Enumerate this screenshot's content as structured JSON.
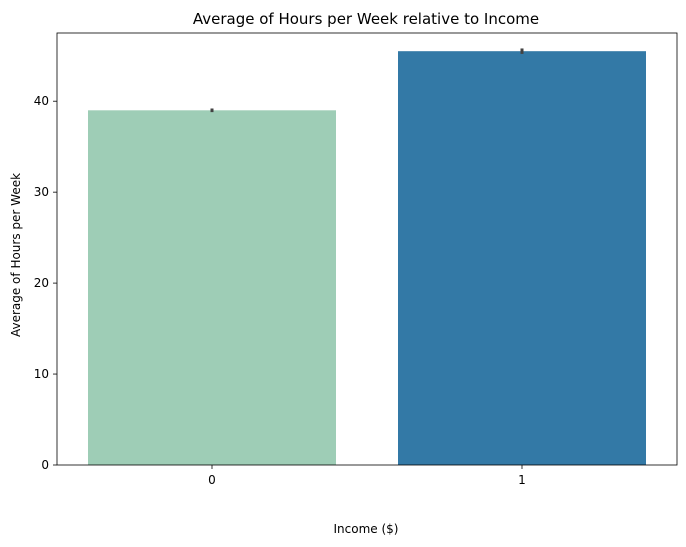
{
  "chart_data": {
    "type": "bar",
    "title": "Average of Hours per Week relative to Income",
    "xlabel": "Income ($)",
    "ylabel": "Average of Hours per Week",
    "categories": [
      "0",
      "1"
    ],
    "values": [
      39.0,
      45.5
    ],
    "error_bars": [
      [
        38.8,
        39.2
      ],
      [
        45.2,
        45.8
      ]
    ],
    "colors": [
      "#9ecdb6",
      "#3379a6"
    ],
    "ylim": [
      0,
      47.5
    ],
    "yticks": [
      0,
      10,
      20,
      30,
      40
    ],
    "grid": false,
    "legend": "none"
  }
}
